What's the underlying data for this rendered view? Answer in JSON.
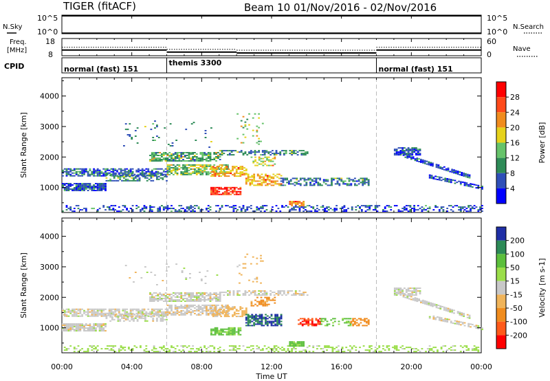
{
  "header": {
    "title": "TIGER (fitACF)",
    "subtitle": "Beam 10  01/Nov/2016 - 02/Nov/2016"
  },
  "aux_panels": {
    "nsky_label": "N.Sky",
    "nsky_ticks": [
      "10^5",
      "10^0"
    ],
    "nsearch_label": "N.Search",
    "nsearch_ticks": [
      "10^5",
      "10^0"
    ],
    "freq_label": "Freq.",
    "freq_unit": "[MHz]",
    "freq_ticks": [
      "18",
      "8"
    ],
    "nave_label": "Nave",
    "nave_ticks": [
      "60",
      "0"
    ],
    "cpid_label": "CPID",
    "cpid_segments": [
      {
        "name": "normal (fast) 151",
        "start_hour": 0,
        "end_hour": 6
      },
      {
        "name": "themis 3300",
        "start_hour": 6,
        "end_hour": 18
      },
      {
        "name": "normal (fast) 151",
        "start_hour": 18,
        "end_hour": 24
      }
    ],
    "freq_mhz_levels": [
      {
        "start_hour": 0,
        "end_hour": 6,
        "value": 11.3
      },
      {
        "start_hour": 6,
        "end_hour": 10,
        "value": 10.1
      },
      {
        "start_hour": 10,
        "end_hour": 18,
        "value": 9.6
      },
      {
        "start_hour": 18,
        "end_hour": 24,
        "value": 11.3
      }
    ]
  },
  "chart_data": [
    {
      "type": "heatmap",
      "parameter": "power",
      "ylabel": "Slant Range [km]",
      "ylim": [
        180,
        4600
      ],
      "yticks": [
        1000,
        2000,
        3000,
        4000
      ],
      "xlim_hours": [
        0,
        24
      ],
      "colorbar_label": "Power [dB]",
      "colorbar_ticks": [
        "4",
        "8",
        "12",
        "16",
        "20",
        "24",
        "28"
      ],
      "colorbar_range": [
        0,
        32
      ],
      "colors": [
        "#0000ff",
        "#2f4fb8",
        "#2e8b57",
        "#66c36a",
        "#e6d21b",
        "#f08c1e",
        "#ff4a1a",
        "#ff0000"
      ],
      "regions": [
        {
          "t0": 0.0,
          "t1": 24.0,
          "r0": 200,
          "r1": 420,
          "v": 5,
          "d": 0.35
        },
        {
          "t0": 0.0,
          "t1": 2.5,
          "r0": 880,
          "r1": 1120,
          "v": 6,
          "d": 0.85
        },
        {
          "t0": 0.0,
          "t1": 6.0,
          "r0": 1360,
          "r1": 1620,
          "v": 6,
          "d": 0.7
        },
        {
          "t0": 2.5,
          "t1": 6.0,
          "r0": 1200,
          "r1": 1450,
          "v": 8,
          "d": 0.5
        },
        {
          "t0": 5.0,
          "t1": 9.0,
          "r0": 1850,
          "r1": 2150,
          "v": 11,
          "d": 0.75
        },
        {
          "t0": 6.0,
          "t1": 9.5,
          "r0": 1400,
          "r1": 1750,
          "v": 14,
          "d": 0.7
        },
        {
          "t0": 8.5,
          "t1": 10.5,
          "r0": 1350,
          "r1": 1700,
          "v": 20,
          "d": 0.6
        },
        {
          "t0": 8.5,
          "t1": 10.2,
          "r0": 750,
          "r1": 1000,
          "v": 27,
          "d": 0.8
        },
        {
          "t0": 10.5,
          "t1": 12.5,
          "r0": 1050,
          "r1": 1450,
          "v": 20,
          "d": 0.6
        },
        {
          "t0": 10.8,
          "t1": 12.2,
          "r0": 1700,
          "r1": 2000,
          "v": 16,
          "d": 0.5
        },
        {
          "t0": 9.0,
          "t1": 14.0,
          "r0": 2050,
          "r1": 2200,
          "v": 8,
          "d": 0.55
        },
        {
          "t0": 13.0,
          "t1": 13.8,
          "r0": 380,
          "r1": 520,
          "v": 22,
          "d": 0.85
        },
        {
          "t0": 12.5,
          "t1": 17.5,
          "r0": 1050,
          "r1": 1300,
          "v": 7,
          "d": 0.5
        },
        {
          "t0": 10.0,
          "t1": 11.5,
          "r0": 2400,
          "r1": 3400,
          "v": 14,
          "d": 0.08
        },
        {
          "t0": 3.5,
          "t1": 9.0,
          "r0": 2300,
          "r1": 3200,
          "v": 8,
          "d": 0.04
        },
        {
          "t0": 19.0,
          "t1": 20.5,
          "r0": 2050,
          "r1": 2300,
          "v": 5,
          "d": 0.8
        }
      ],
      "tracks": [
        {
          "t0": 19.5,
          "t1": 23.3,
          "r0": 2050,
          "r1": 1350,
          "w": 120,
          "v": 5,
          "d": 0.8
        },
        {
          "t0": 21.0,
          "t1": 24.0,
          "r0": 1350,
          "r1": 980,
          "w": 110,
          "v": 5,
          "d": 0.7
        }
      ]
    },
    {
      "type": "heatmap",
      "parameter": "velocity",
      "ylabel": "Slant Range [km]",
      "ylim": [
        180,
        4600
      ],
      "yticks": [
        1000,
        2000,
        3000,
        4000
      ],
      "xlim_hours": [
        0,
        24
      ],
      "colorbar_label": "Velocity [m s-1]",
      "colorbar_ticks": [
        "200",
        "100",
        "50",
        "15",
        "-15",
        "-50",
        "-100",
        "-200"
      ],
      "colorbar_range": [
        -250,
        250
      ],
      "colors": [
        "#1f2fa6",
        "#2d8a57",
        "#5cbf3c",
        "#9bde4a",
        "#c8c8c8",
        "#f0b45a",
        "#f08c1e",
        "#ff5a1a",
        "#ff0000"
      ],
      "regions": [
        {
          "t0": 0.0,
          "t1": 24.0,
          "r0": 200,
          "r1": 420,
          "v": 30,
          "d": 0.3
        },
        {
          "t0": 0.0,
          "t1": 2.5,
          "r0": 880,
          "r1": 1120,
          "v": 0,
          "d": 0.85
        },
        {
          "t0": 0.0,
          "t1": 6.0,
          "r0": 1360,
          "r1": 1620,
          "v": 0,
          "d": 0.7
        },
        {
          "t0": 2.5,
          "t1": 6.0,
          "r0": 1200,
          "r1": 1450,
          "v": 0,
          "d": 0.5
        },
        {
          "t0": 5.0,
          "t1": 9.0,
          "r0": 1850,
          "r1": 2150,
          "v": 0,
          "d": 0.75
        },
        {
          "t0": 6.0,
          "t1": 9.5,
          "r0": 1400,
          "r1": 1750,
          "v": -5,
          "d": 0.7
        },
        {
          "t0": 8.5,
          "t1": 10.5,
          "r0": 1350,
          "r1": 1700,
          "v": -30,
          "d": 0.5
        },
        {
          "t0": 8.5,
          "t1": 10.2,
          "r0": 750,
          "r1": 1000,
          "v": 60,
          "d": 0.75
        },
        {
          "t0": 10.5,
          "t1": 12.5,
          "r0": 1050,
          "r1": 1450,
          "v": 200,
          "d": 0.7
        },
        {
          "t0": 10.8,
          "t1": 12.2,
          "r0": 1700,
          "r1": 2000,
          "v": -60,
          "d": 0.5
        },
        {
          "t0": 9.0,
          "t1": 14.0,
          "r0": 2050,
          "r1": 2200,
          "v": 0,
          "d": 0.5
        },
        {
          "t0": 13.0,
          "t1": 13.8,
          "r0": 380,
          "r1": 520,
          "v": 60,
          "d": 0.85
        },
        {
          "t0": 13.5,
          "t1": 14.8,
          "r0": 1050,
          "r1": 1300,
          "v": -200,
          "d": 0.6
        },
        {
          "t0": 14.8,
          "t1": 16.5,
          "r0": 1050,
          "r1": 1300,
          "v": 60,
          "d": 0.5
        },
        {
          "t0": 16.5,
          "t1": 17.5,
          "r0": 1050,
          "r1": 1300,
          "v": -80,
          "d": 0.6
        },
        {
          "t0": 10.0,
          "t1": 11.5,
          "r0": 2400,
          "r1": 3400,
          "v": -30,
          "d": 0.08
        },
        {
          "t0": 3.5,
          "t1": 9.0,
          "r0": 2300,
          "r1": 3200,
          "v": 0,
          "d": 0.04
        },
        {
          "t0": 19.0,
          "t1": 20.5,
          "r0": 2050,
          "r1": 2300,
          "v": 0,
          "d": 0.8
        }
      ],
      "tracks": [
        {
          "t0": 19.5,
          "t1": 23.3,
          "r0": 2050,
          "r1": 1350,
          "w": 120,
          "v": 0,
          "d": 0.8
        },
        {
          "t0": 21.0,
          "t1": 24.0,
          "r0": 1350,
          "r1": 980,
          "w": 110,
          "v": 0,
          "d": 0.7
        }
      ]
    }
  ],
  "x_axis": {
    "label": "Time UT",
    "ticks": [
      "00:00",
      "04:00",
      "08:00",
      "12:00",
      "16:00",
      "20:00",
      "00:00"
    ]
  }
}
